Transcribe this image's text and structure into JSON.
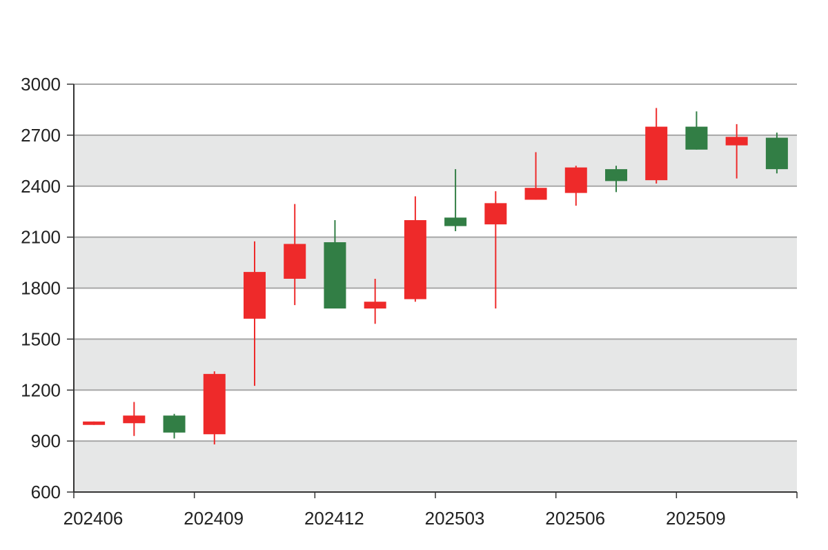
{
  "colors": {
    "up": "#ee2a2a",
    "down": "#327e45",
    "band": "#e6e7e7",
    "grid": "#a7a7a7",
    "axis": "#333333"
  },
  "chart_data": {
    "type": "candlestick",
    "ylim": [
      600,
      3000
    ],
    "yticks": [
      "600",
      "900",
      "1200",
      "1500",
      "1800",
      "2100",
      "2400",
      "2700",
      "3000"
    ],
    "xtick_labels": [
      "202406",
      "202409",
      "202412",
      "202503",
      "202506",
      "202509"
    ],
    "grid": true,
    "alternating_bands": true,
    "candles": [
      {
        "open": 995,
        "close": 1015,
        "high": 1015,
        "low": 995,
        "color": "up"
      },
      {
        "open": 1005,
        "close": 1050,
        "high": 1130,
        "low": 930,
        "color": "up"
      },
      {
        "open": 1050,
        "close": 950,
        "high": 1060,
        "low": 915,
        "color": "down"
      },
      {
        "open": 940,
        "close": 1295,
        "high": 1310,
        "low": 880,
        "color": "up"
      },
      {
        "open": 1620,
        "close": 1895,
        "high": 2075,
        "low": 1225,
        "color": "up"
      },
      {
        "open": 1855,
        "close": 2060,
        "high": 2295,
        "low": 1700,
        "color": "up"
      },
      {
        "open": 2070,
        "close": 1680,
        "high": 2200,
        "low": 1680,
        "color": "down"
      },
      {
        "open": 1680,
        "close": 1720,
        "high": 1855,
        "low": 1590,
        "color": "up"
      },
      {
        "open": 1735,
        "close": 2200,
        "high": 2340,
        "low": 1720,
        "color": "up"
      },
      {
        "open": 2215,
        "close": 2165,
        "high": 2500,
        "low": 2135,
        "color": "down"
      },
      {
        "open": 2175,
        "close": 2300,
        "high": 2370,
        "low": 1680,
        "color": "up"
      },
      {
        "open": 2320,
        "close": 2390,
        "high": 2600,
        "low": 2320,
        "color": "up"
      },
      {
        "open": 2360,
        "close": 2510,
        "high": 2520,
        "low": 2285,
        "color": "up"
      },
      {
        "open": 2500,
        "close": 2430,
        "high": 2520,
        "low": 2365,
        "color": "down"
      },
      {
        "open": 2435,
        "close": 2750,
        "high": 2860,
        "low": 2415,
        "color": "up"
      },
      {
        "open": 2750,
        "close": 2615,
        "high": 2840,
        "low": 2615,
        "color": "down"
      },
      {
        "open": 2640,
        "close": 2690,
        "high": 2765,
        "low": 2445,
        "color": "up"
      },
      {
        "open": 2685,
        "close": 2500,
        "high": 2715,
        "low": 2475,
        "color": "down"
      }
    ]
  }
}
